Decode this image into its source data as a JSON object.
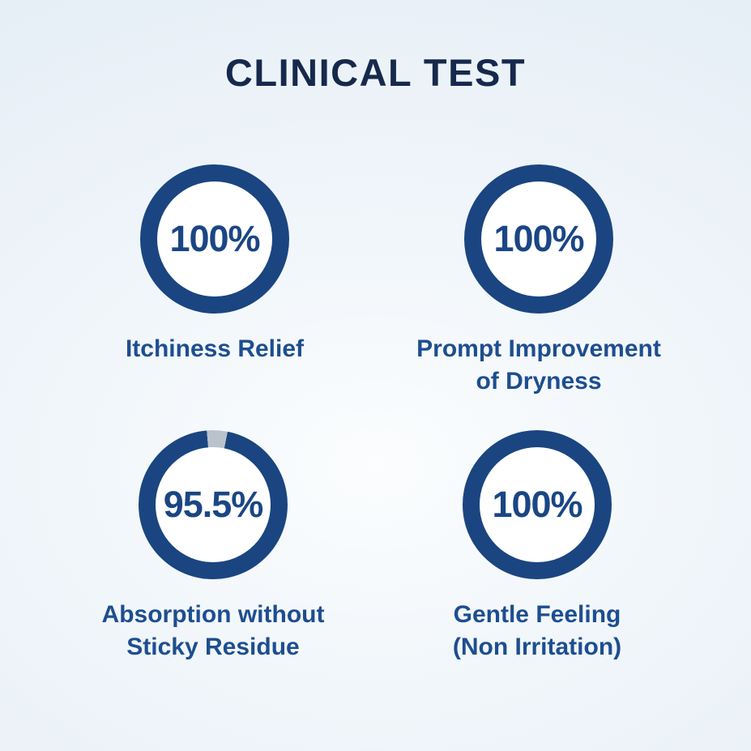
{
  "title": "CLINICAL TEST",
  "colors": {
    "ring": "#1a4580",
    "ring_gap": "#bac3cb",
    "percent_text": "#1a4684",
    "label_text": "#1d4e8f",
    "title_text": "#16294d",
    "background_center": "#fbfdfe",
    "background_mid": "#eef4f9",
    "background_edge": "#e2ecf5"
  },
  "chart_data": {
    "type": "pie",
    "style": "donut-ring",
    "title": "CLINICAL TEST",
    "legend_position": "below-each-ring",
    "value_range": [
      0,
      100
    ],
    "series": [
      {
        "name": "Itchiness Relief",
        "value": 100,
        "display": "100%",
        "label_lines": [
          "Itchiness Relief"
        ]
      },
      {
        "name": "Prompt Improvement of Dryness",
        "value": 100,
        "display": "100%",
        "label_lines": [
          "Prompt Improvement",
          "of Dryness"
        ]
      },
      {
        "name": "Absorption without Sticky Residue",
        "value": 95.5,
        "display": "95.5%",
        "label_lines": [
          "Absorption without",
          "Sticky Residue"
        ]
      },
      {
        "name": "Gentle Feeling (Non Irritation)",
        "value": 100,
        "display": "100%",
        "label_lines": [
          "Gentle Feeling",
          "(Non Irritation)"
        ]
      }
    ]
  }
}
